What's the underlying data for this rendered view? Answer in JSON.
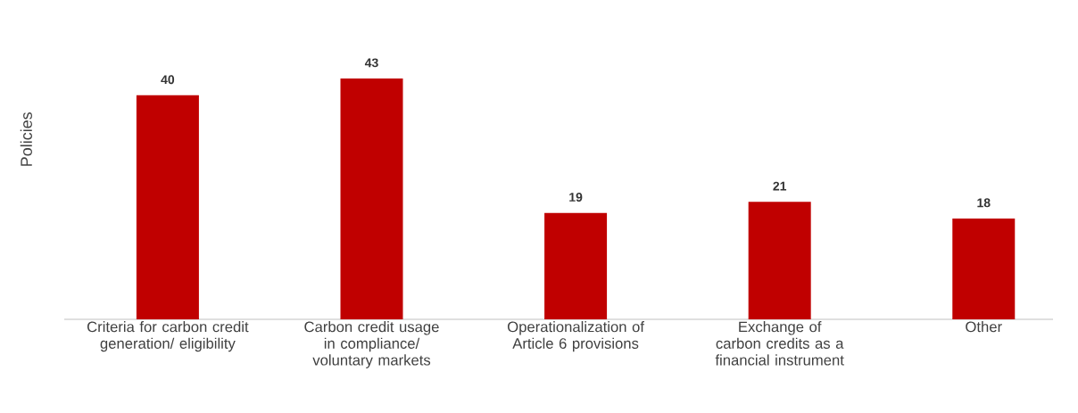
{
  "chart_data": {
    "type": "bar",
    "ylabel": "Policies",
    "categories": [
      "Criteria for carbon credit generation/ eligibility",
      "Carbon credit usage in compliance/ voluntary markets",
      "Operationalization of Article 6 provisions",
      "Exchange of carbon credits as a financial instrument",
      "Other"
    ],
    "values": [
      40,
      43,
      19,
      21,
      18
    ],
    "color": "#c00000",
    "data_labels": true
  }
}
